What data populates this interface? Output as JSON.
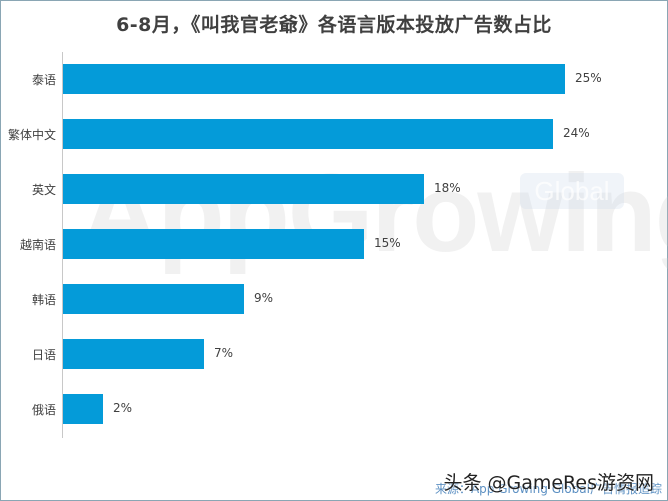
{
  "chart_data": {
    "type": "bar",
    "orientation": "horizontal",
    "title": "6-8月，《叫我官老爺》各语言版本投放广告数占比",
    "categories": [
      "泰语",
      "繁体中文",
      "英文",
      "越南语",
      "韩语",
      "日语",
      "俄语"
    ],
    "values": [
      25,
      24,
      18,
      15,
      9,
      7,
      2
    ],
    "value_labels": [
      "25%",
      "24%",
      "18%",
      "15%",
      "9%",
      "7%",
      "2%"
    ],
    "xlabel": "",
    "ylabel": "",
    "unit": "%",
    "grid": false,
    "legend": null,
    "bar_color": "#049bd9"
  },
  "watermark": {
    "main": "AppGrowing",
    "badge": "Global"
  },
  "footer": {
    "credit": "头条 @GameRes游资网",
    "source": "来源：App Growing Global广告情报追踪"
  }
}
